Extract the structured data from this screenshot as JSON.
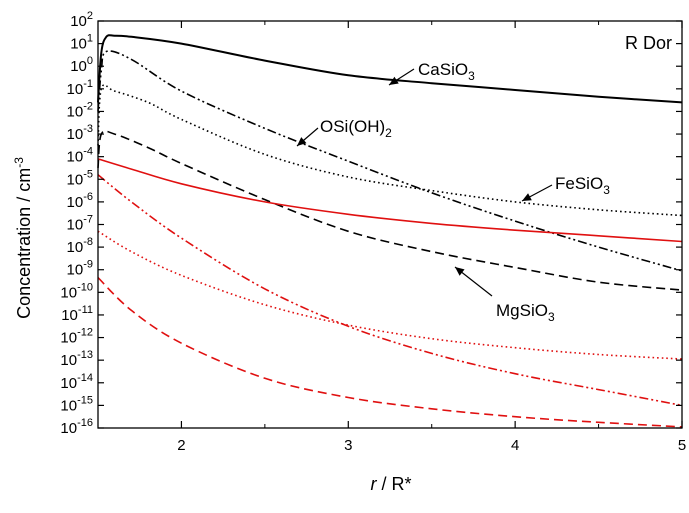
{
  "chart_data": {
    "type": "line",
    "title": "R Dor",
    "xlabel": {
      "italic": "r",
      "rest": " / R*"
    },
    "ylabel": {
      "main": "Concentration / cm",
      "sup": "-3"
    },
    "xlim": [
      1.5,
      5
    ],
    "ylim_log10": [
      -16,
      2
    ],
    "y_scale": "log",
    "xticks": [
      {
        "value": 2,
        "label": "2"
      },
      {
        "value": 3,
        "label": "3"
      },
      {
        "value": 4,
        "label": "4"
      },
      {
        "value": 5,
        "label": "5"
      }
    ],
    "yticks": [
      {
        "exp": 2,
        "sup": "2"
      },
      {
        "exp": 1,
        "sup": "1"
      },
      {
        "exp": 0,
        "sup": "0"
      },
      {
        "exp": -1,
        "sup": "-1"
      },
      {
        "exp": -2,
        "sup": "-2"
      },
      {
        "exp": -3,
        "sup": "-3"
      },
      {
        "exp": -4,
        "sup": "-4"
      },
      {
        "exp": -5,
        "sup": "-5"
      },
      {
        "exp": -6,
        "sup": "-6"
      },
      {
        "exp": -7,
        "sup": "-7"
      },
      {
        "exp": -8,
        "sup": "-8"
      },
      {
        "exp": -9,
        "sup": "-9"
      },
      {
        "exp": -10,
        "sup": "-10"
      },
      {
        "exp": -11,
        "sup": "-11"
      },
      {
        "exp": -12,
        "sup": "-12"
      },
      {
        "exp": -13,
        "sup": "-13"
      },
      {
        "exp": -14,
        "sup": "-14"
      },
      {
        "exp": -15,
        "sup": "-15"
      },
      {
        "exp": -16,
        "sup": "-16"
      }
    ],
    "ytick_base": "10",
    "series": [
      {
        "name": "CaSiO3",
        "color": "#000000",
        "dash": "solid",
        "x": [
          1.5,
          1.52,
          1.55,
          1.6,
          1.7,
          2.0,
          2.5,
          3.0,
          3.5,
          4.0,
          4.5,
          5.0
        ],
        "log10_y": [
          -1.6,
          0.6,
          1.3,
          1.35,
          1.3,
          1.0,
          0.25,
          -0.4,
          -0.75,
          -1.05,
          -1.35,
          -1.6
        ]
      },
      {
        "name": "OSi(OH)2",
        "color": "#000000",
        "dash": "dashdotdot",
        "x": [
          1.5,
          1.52,
          1.55,
          1.7,
          2.0,
          2.5,
          3.0,
          3.5,
          4.0,
          4.5,
          5.0
        ],
        "log10_y": [
          -2.0,
          -0.2,
          0.65,
          0.3,
          -1.1,
          -2.75,
          -4.2,
          -5.6,
          -6.85,
          -8.0,
          -9.05
        ]
      },
      {
        "name": "",
        "color": "#000000",
        "dash": "dotted",
        "x": [
          1.5,
          1.52,
          1.6,
          1.8,
          2.0,
          2.5,
          3.0,
          3.5,
          4.0,
          4.5,
          5.0
        ],
        "log10_y": [
          -3.5,
          -1.0,
          -1.1,
          -1.6,
          -2.35,
          -3.9,
          -4.9,
          -5.5,
          -6.0,
          -6.35,
          -6.6
        ]
      },
      {
        "name": "",
        "color": "#000000",
        "dash": "dashed",
        "x": [
          1.5,
          1.52,
          1.6,
          1.8,
          2.0,
          2.5,
          3.0,
          3.5,
          4.0,
          4.5,
          5.0
        ],
        "log10_y": [
          -4.5,
          -3.0,
          -3.0,
          -3.6,
          -4.3,
          -5.9,
          -7.3,
          -8.2,
          -8.9,
          -9.55,
          -9.9
        ]
      },
      {
        "name": "FeSiO3",
        "color": "#e01010",
        "dash": "solid",
        "x": [
          1.5,
          1.7,
          2.0,
          2.5,
          3.0,
          3.5,
          4.0,
          4.5,
          5.0
        ],
        "log10_y": [
          -4.1,
          -4.55,
          -5.2,
          -6.0,
          -6.55,
          -6.95,
          -7.25,
          -7.5,
          -7.75
        ]
      },
      {
        "name": "MgSiO3",
        "color": "#e01010",
        "dash": "dashdotdot",
        "x": [
          1.5,
          1.7,
          2.0,
          2.5,
          3.0,
          3.5,
          4.0,
          4.5,
          5.0
        ],
        "log10_y": [
          -4.8,
          -6.0,
          -7.6,
          -9.85,
          -11.5,
          -12.7,
          -13.6,
          -14.3,
          -15.0
        ]
      },
      {
        "name": "",
        "color": "#e01010",
        "dash": "dotted",
        "x": [
          1.5,
          1.7,
          2.0,
          2.5,
          3.0,
          3.5,
          4.0,
          4.5,
          5.0
        ],
        "log10_y": [
          -7.3,
          -8.2,
          -9.25,
          -10.55,
          -11.45,
          -12.05,
          -12.45,
          -12.75,
          -12.95
        ]
      },
      {
        "name": "",
        "color": "#e01010",
        "dash": "dashed",
        "x": [
          1.5,
          1.7,
          2.0,
          2.5,
          3.0,
          3.5,
          4.0,
          4.5,
          5.0
        ],
        "log10_y": [
          -9.35,
          -10.8,
          -12.25,
          -13.8,
          -14.65,
          -15.15,
          -15.5,
          -15.75,
          -15.95
        ]
      }
    ],
    "annotations": [
      {
        "text": "CaSiO",
        "sub": "3",
        "series": "CaSiO3"
      },
      {
        "text": "OSi(OH)",
        "sub": "2",
        "series": "OSi(OH)2"
      },
      {
        "text": "FeSiO",
        "sub": "3",
        "series": "FeSiO3"
      },
      {
        "text": "MgSiO",
        "sub": "3",
        "series": "MgSiO3"
      }
    ]
  }
}
